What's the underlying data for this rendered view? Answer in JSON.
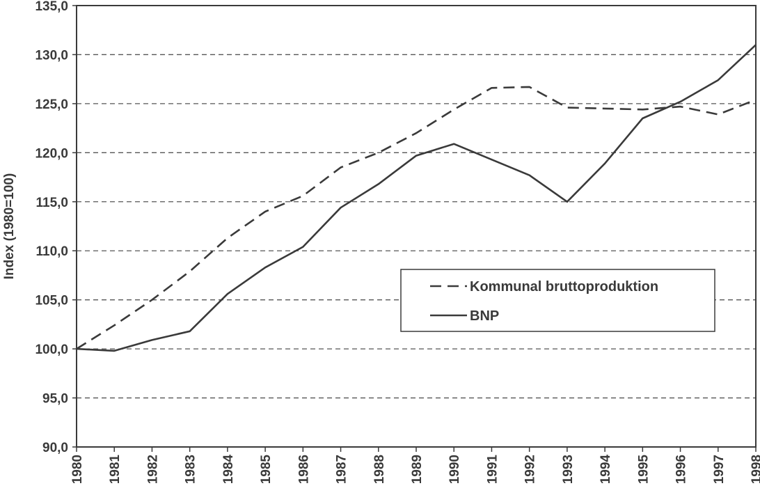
{
  "chart_data": {
    "type": "line",
    "title": "",
    "xlabel": "",
    "ylabel": "Index (1980=100)",
    "x": [
      "1980",
      "1981",
      "1982",
      "1983",
      "1984",
      "1985",
      "1986",
      "1987",
      "1988",
      "1989",
      "1990",
      "1991",
      "1992",
      "1993",
      "1994",
      "1995",
      "1996",
      "1997",
      "1998"
    ],
    "ylim": [
      90,
      135
    ],
    "yticks": [
      90,
      95,
      100,
      105,
      110,
      115,
      120,
      125,
      130,
      135
    ],
    "ytick_labels": [
      "90,0",
      "95,0",
      "100,0",
      "105,0",
      "110,0",
      "115,0",
      "120,0",
      "125,0",
      "130,0",
      "135,0"
    ],
    "grid": "horizontal dashed",
    "legend_position": "center-right",
    "series": [
      {
        "name": "Kommunal bruttoproduktion",
        "style": "dashed",
        "color": "#3a3a3a",
        "values": [
          100.0,
          102.4,
          105.0,
          107.9,
          111.3,
          114.0,
          115.6,
          118.5,
          120.0,
          122.0,
          124.4,
          126.6,
          126.7,
          124.6,
          124.5,
          124.4,
          124.7,
          123.9,
          125.4
        ]
      },
      {
        "name": "BNP",
        "style": "solid",
        "color": "#3a3a3a",
        "values": [
          100.0,
          99.8,
          100.9,
          101.8,
          105.6,
          108.3,
          110.4,
          114.4,
          116.8,
          119.7,
          120.9,
          119.3,
          117.7,
          115.0,
          118.9,
          123.5,
          125.2,
          127.4,
          131.0
        ]
      }
    ]
  }
}
